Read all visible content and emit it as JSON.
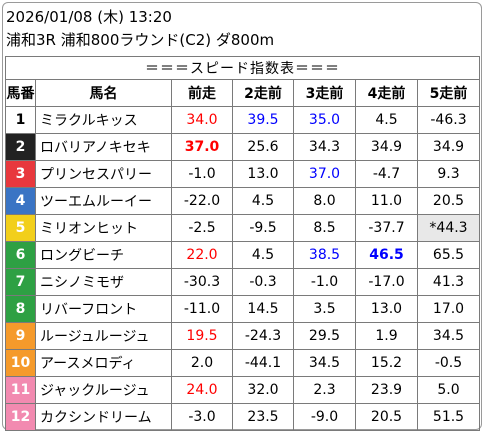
{
  "header": {
    "date_line": "2026/01/08 (木) 13:20",
    "race_line": "浦和3R 浦和800ラウンド(C2) ダ800m"
  },
  "table": {
    "banner": "＝＝＝スピード指数表＝＝＝",
    "columns": [
      "馬番",
      "馬名",
      "前走",
      "2走前",
      "3走前",
      "4走前",
      "5走前"
    ],
    "number_colors": {
      "1": {
        "bg": "#ffffff",
        "fg": "#000000"
      },
      "2": {
        "bg": "#222222",
        "fg": "#ffffff"
      },
      "3": {
        "bg": "#e8383d",
        "fg": "#ffffff"
      },
      "4": {
        "bg": "#3a74c4",
        "fg": "#ffffff"
      },
      "5": {
        "bg": "#f2cf1b",
        "fg": "#ffffff"
      },
      "6": {
        "bg": "#2ea043",
        "fg": "#ffffff"
      },
      "7": {
        "bg": "#f59a2b",
        "fg": "#ffffff"
      },
      "8": {
        "bg": "#f28ab0",
        "fg": "#ffffff"
      }
    },
    "rows": [
      {
        "no": "1",
        "name": "ミラクルキッス",
        "frame": "1",
        "vals": [
          "34.0",
          "39.5",
          "35.0",
          "4.5",
          "-46.3"
        ],
        "styles": [
          "red",
          "blue",
          "blue",
          "",
          ""
        ]
      },
      {
        "no": "2",
        "name": "ロバリアノキセキ",
        "frame": "2",
        "vals": [
          "37.0",
          "25.6",
          "34.3",
          "34.9",
          "34.9"
        ],
        "styles": [
          "red bold",
          "",
          "",
          "",
          ""
        ]
      },
      {
        "no": "3",
        "name": "プリンセスパリー",
        "frame": "3",
        "vals": [
          "-1.0",
          "13.0",
          "37.0",
          "-4.7",
          "9.3"
        ],
        "styles": [
          "",
          "",
          "blue",
          "",
          ""
        ]
      },
      {
        "no": "4",
        "name": "ツーエムルーイー",
        "frame": "4",
        "vals": [
          "-22.0",
          "4.5",
          "8.0",
          "11.0",
          "20.5"
        ],
        "styles": [
          "",
          "",
          "",
          "",
          ""
        ]
      },
      {
        "no": "5",
        "name": "ミリオンヒット",
        "frame": "5",
        "vals": [
          "-2.5",
          "-9.5",
          "8.5",
          "-37.7",
          "*44.3"
        ],
        "styles": [
          "",
          "",
          "",
          "",
          "gray"
        ]
      },
      {
        "no": "6",
        "name": "ロングビーチ",
        "frame": "6",
        "vals": [
          "22.0",
          "4.5",
          "38.5",
          "46.5",
          "65.5"
        ],
        "styles": [
          "red",
          "",
          "blue",
          "blue bold",
          ""
        ]
      },
      {
        "no": "7",
        "name": "ニシノミモザ",
        "frame": "6",
        "vals": [
          "-30.3",
          "-0.3",
          "-1.0",
          "-17.0",
          "41.3"
        ],
        "styles": [
          "",
          "",
          "",
          "",
          ""
        ]
      },
      {
        "no": "8",
        "name": "リバーフロント",
        "frame": "6",
        "vals": [
          "-11.0",
          "14.5",
          "3.5",
          "13.0",
          "17.0"
        ],
        "styles": [
          "",
          "",
          "",
          "",
          ""
        ]
      },
      {
        "no": "9",
        "name": "ルージュルージュ",
        "frame": "7",
        "vals": [
          "19.5",
          "-24.3",
          "29.5",
          "1.9",
          "34.5"
        ],
        "styles": [
          "red",
          "",
          "",
          "",
          ""
        ]
      },
      {
        "no": "10",
        "name": "アースメロディ",
        "frame": "7",
        "vals": [
          "2.0",
          "-44.1",
          "34.5",
          "15.2",
          "-0.5"
        ],
        "styles": [
          "",
          "",
          "",
          "",
          ""
        ]
      },
      {
        "no": "11",
        "name": "ジャックルージュ",
        "frame": "8",
        "vals": [
          "24.0",
          "32.0",
          "2.3",
          "23.9",
          "5.0"
        ],
        "styles": [
          "red",
          "",
          "",
          "",
          ""
        ]
      },
      {
        "no": "12",
        "name": "カクシンドリーム",
        "frame": "8",
        "vals": [
          "-3.0",
          "23.5",
          "-9.0",
          "20.5",
          "51.5"
        ],
        "styles": [
          "",
          "",
          "",
          "",
          ""
        ]
      }
    ]
  }
}
